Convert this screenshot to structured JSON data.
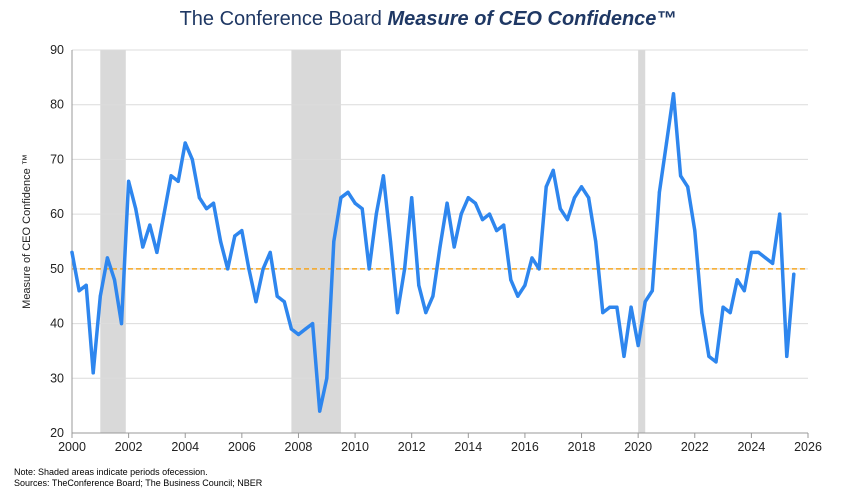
{
  "title": {
    "plain": "The Conference Board ",
    "emphasis": "Measure of CEO Confidence™"
  },
  "footnote": {
    "line1": "Note: Shaded areas indicate periods ofecession.",
    "line2": "Sources: TheConference Board; The Business Council; NBER"
  },
  "colors": {
    "line": "#2e86ee",
    "reference": "#f5a623",
    "recession": "#d9d9d9",
    "grid": "#dcdcdc",
    "title": "#1f3864"
  },
  "chart_data": {
    "type": "line",
    "ylabel": "Measure of CEO Confidence ™",
    "xlim": [
      2000,
      2026
    ],
    "ylim": [
      20,
      90
    ],
    "xticks": [
      "2000",
      "2002",
      "2004",
      "2006",
      "2008",
      "2010",
      "2012",
      "2014",
      "2016",
      "2018",
      "2020",
      "2022",
      "2024",
      "2026"
    ],
    "yticks": [
      "20",
      "30",
      "40",
      "50",
      "60",
      "70",
      "80",
      "90"
    ],
    "grid": "horizontal",
    "reference_line": 50,
    "recessions": [
      [
        2001.0,
        2001.9
      ],
      [
        2007.75,
        2009.5
      ],
      [
        2020.0,
        2020.25
      ]
    ],
    "series": [
      {
        "x": [
          2000.0,
          2000.25,
          2000.5,
          2000.75,
          2001.0,
          2001.25,
          2001.5,
          2001.75,
          2002.0,
          2002.25,
          2002.5,
          2002.75,
          2003.0,
          2003.25,
          2003.5,
          2003.75,
          2004.0,
          2004.25,
          2004.5,
          2004.75,
          2005.0,
          2005.25,
          2005.5,
          2005.75,
          2006.0,
          2006.25,
          2006.5,
          2006.75,
          2007.0,
          2007.25,
          2007.5,
          2007.75,
          2008.0,
          2008.25,
          2008.5,
          2008.75,
          2009.0,
          2009.25,
          2009.5,
          2009.75,
          2010.0,
          2010.25,
          2010.5,
          2010.75,
          2011.0,
          2011.25,
          2011.5,
          2011.75,
          2012.0,
          2012.25,
          2012.5,
          2012.75,
          2013.0,
          2013.25,
          2013.5,
          2013.75,
          2014.0,
          2014.25,
          2014.5,
          2014.75,
          2015.0,
          2015.25,
          2015.5,
          2015.75,
          2016.0,
          2016.25,
          2016.5,
          2016.75,
          2017.0,
          2017.25,
          2017.5,
          2017.75,
          2018.0,
          2018.25,
          2018.5,
          2018.75,
          2019.0,
          2019.25,
          2019.5,
          2019.75,
          2020.0,
          2020.25,
          2020.5,
          2020.75,
          2021.0,
          2021.25,
          2021.5,
          2021.75,
          2022.0,
          2022.25,
          2022.5,
          2022.75,
          2023.0,
          2023.25,
          2023.5,
          2023.75,
          2024.0,
          2024.25,
          2024.5,
          2024.75,
          2025.0,
          2025.25,
          2025.5
        ],
        "values": [
          53,
          46,
          47,
          31,
          45,
          52,
          48,
          40,
          66,
          61,
          54,
          58,
          53,
          60,
          67,
          66,
          73,
          70,
          63,
          61,
          62,
          55,
          50,
          56,
          57,
          50,
          44,
          50,
          53,
          45,
          44,
          39,
          38,
          39,
          40,
          24,
          30,
          55,
          63,
          64,
          62,
          61,
          50,
          60,
          67,
          55,
          42,
          50,
          63,
          47,
          42,
          45,
          54,
          62,
          54,
          60,
          63,
          62,
          59,
          60,
          57,
          58,
          48,
          45,
          47,
          52,
          50,
          65,
          68,
          61,
          59,
          63,
          65,
          63,
          55,
          42,
          43,
          43,
          34,
          43,
          36,
          44,
          46,
          64,
          73,
          82,
          67,
          65,
          57,
          42,
          34,
          33,
          43,
          42,
          48,
          46,
          53,
          53,
          52,
          51,
          60,
          34,
          49
        ]
      }
    ]
  }
}
